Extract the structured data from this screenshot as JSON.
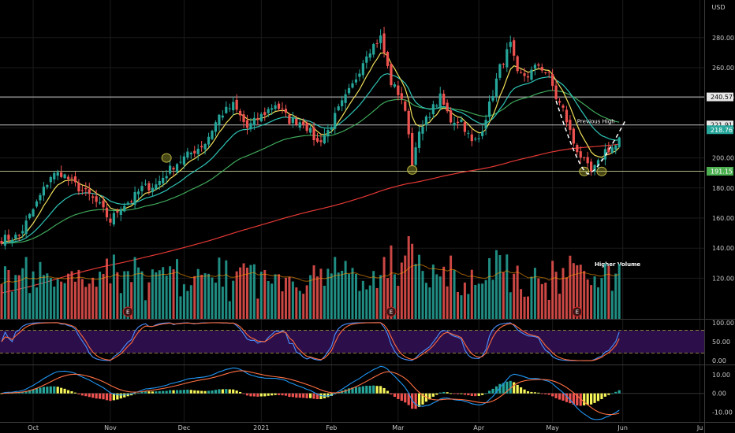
{
  "currency": "USD",
  "chart_data": {
    "type": "candlestick",
    "main": {
      "y_ticks": [
        120,
        140,
        160,
        180,
        200,
        220,
        240,
        260,
        280
      ],
      "ylim": [
        93,
        305
      ],
      "price_levels": [
        {
          "label": "240.57",
          "value": 240.57,
          "color": "#ffffff"
        },
        {
          "label": "221.91",
          "value": 221.91,
          "color": "#ffffff"
        },
        {
          "label": "218.76",
          "value": 218.76,
          "color": "#26a69a"
        },
        {
          "label": "191.15",
          "value": 191.15,
          "color": "#4caf50"
        }
      ],
      "annotations": {
        "previous_high": "Previous High",
        "higher_volume": "Higher Volume"
      },
      "earnings_marker": "E",
      "earnings_days": [
        36,
        111,
        164
      ],
      "x_labels": [
        {
          "label": "Oct",
          "day": 9
        },
        {
          "label": "Nov",
          "day": 31
        },
        {
          "label": "Dec",
          "day": 52
        },
        {
          "label": "2021",
          "day": 74
        },
        {
          "label": "Feb",
          "day": 94
        },
        {
          "label": "Mar",
          "day": 113
        },
        {
          "label": "Apr",
          "day": 136
        },
        {
          "label": "May",
          "day": 157
        },
        {
          "label": "Jun",
          "day": 177
        },
        {
          "label": "Ju",
          "day": 199
        }
      ],
      "key_prices": [
        [
          0,
          146
        ],
        [
          5,
          148
        ],
        [
          10,
          170
        ],
        [
          14,
          188
        ],
        [
          17,
          190
        ],
        [
          22,
          180
        ],
        [
          25,
          175
        ],
        [
          28,
          168
        ],
        [
          31,
          158
        ],
        [
          34,
          168
        ],
        [
          37,
          172
        ],
        [
          40,
          180
        ],
        [
          44,
          182
        ],
        [
          49,
          195
        ],
        [
          52,
          200
        ],
        [
          55,
          205
        ],
        [
          58,
          210
        ],
        [
          62,
          228
        ],
        [
          66,
          235
        ],
        [
          70,
          220
        ],
        [
          74,
          228
        ],
        [
          78,
          236
        ],
        [
          82,
          225
        ],
        [
          86,
          224
        ],
        [
          90,
          210
        ],
        [
          93,
          218
        ],
        [
          96,
          232
        ],
        [
          100,
          248
        ],
        [
          104,
          270
        ],
        [
          108,
          280
        ],
        [
          111,
          250
        ],
        [
          114,
          240
        ],
        [
          116,
          218
        ],
        [
          117,
          195
        ],
        [
          118,
          210
        ],
        [
          122,
          230
        ],
        [
          125,
          240
        ],
        [
          128,
          225
        ],
        [
          131,
          225
        ],
        [
          134,
          210
        ],
        [
          136,
          213
        ],
        [
          139,
          235
        ],
        [
          142,
          260
        ],
        [
          145,
          275
        ],
        [
          147,
          255
        ],
        [
          150,
          255
        ],
        [
          153,
          262
        ],
        [
          156,
          255
        ],
        [
          158,
          240
        ],
        [
          160,
          232
        ],
        [
          163,
          210
        ],
        [
          166,
          197
        ],
        [
          168,
          190
        ],
        [
          170,
          196
        ],
        [
          172,
          205
        ],
        [
          175,
          208
        ],
        [
          176,
          212
        ]
      ]
    },
    "stoch": {
      "y_ticks": [
        {
          "label": "100.00",
          "value": 100
        },
        {
          "label": "50.00",
          "value": 50
        },
        {
          "label": "0.00",
          "value": 0
        }
      ],
      "ylim": [
        -8,
        108
      ],
      "band": [
        20,
        80
      ]
    },
    "macd": {
      "y_ticks": [
        {
          "label": "10.00",
          "value": 10
        },
        {
          "label": "0.00",
          "value": 0
        },
        {
          "label": "-10.00",
          "value": -10
        }
      ],
      "ylim": [
        -14,
        15
      ]
    }
  },
  "colors": {
    "up": "#26a69a",
    "down": "#ef5350",
    "ema_fast": "#f0e05a",
    "ema_mid": "#2ec4b6",
    "sma_50": "#3fa85a",
    "sma_200": "#e53935",
    "stoch_k": "#4a90ff",
    "stoch_d": "#ff6b3d",
    "macd_line": "#2196f3",
    "signal_line": "#ff7043"
  }
}
